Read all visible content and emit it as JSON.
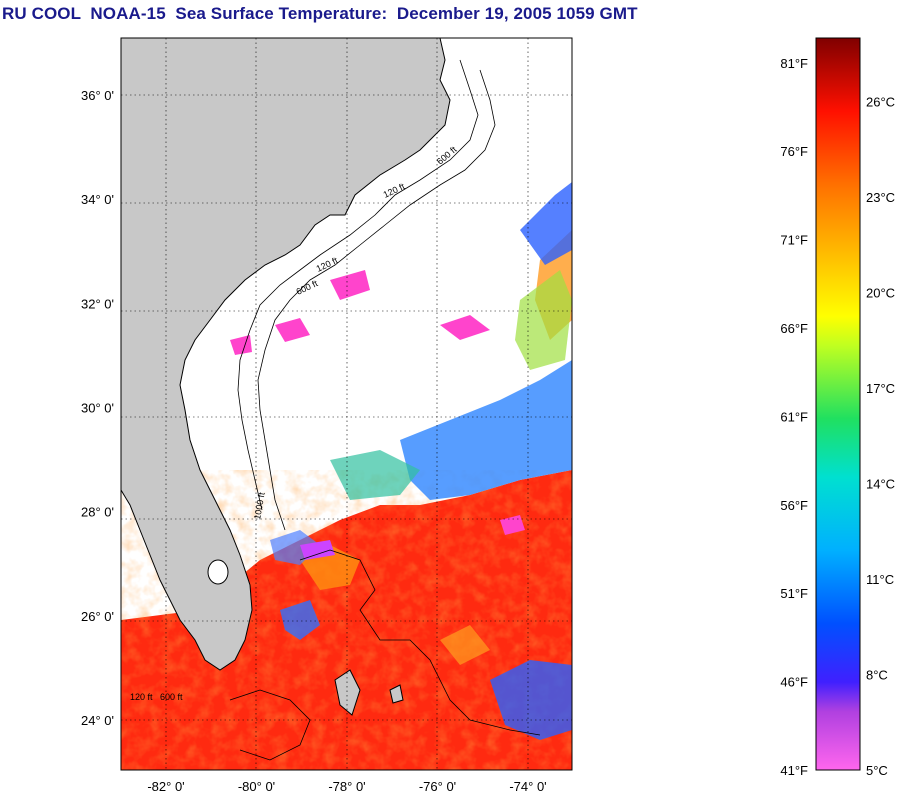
{
  "title": "RU COOL  NOAA-15  Sea Surface Temperature:  December 19, 2005 1059 GMT",
  "map": {
    "lat_ticks": [
      {
        "label": "36° 0'",
        "lat": 36
      },
      {
        "label": "34° 0'",
        "lat": 34
      },
      {
        "label": "32° 0'",
        "lat": 32
      },
      {
        "label": "30° 0'",
        "lat": 30
      },
      {
        "label": "28° 0'",
        "lat": 28
      },
      {
        "label": "26° 0'",
        "lat": 26
      },
      {
        "label": "24° 0'",
        "lat": 24
      }
    ],
    "lon_ticks": [
      {
        "label": "-82° 0'",
        "lon": -82
      },
      {
        "label": "-80° 0'",
        "lon": -80
      },
      {
        "label": "-78° 0'",
        "lon": -78
      },
      {
        "label": "-76° 0'",
        "lon": -76
      },
      {
        "label": "-74° 0'",
        "lon": -74
      }
    ],
    "depth_labels": [
      "120 ft",
      "600 ft",
      "120 ft",
      "600 ft",
      "1000 ft",
      "120 ft",
      "600 ft"
    ],
    "colors": {
      "land": "#c8c8c8",
      "cloud": "#ffffff",
      "warm": "#ff2a10",
      "orange": "#ff8c10",
      "cool": "#3a6cff",
      "cold": "#ff44cc"
    }
  },
  "colorbar": {
    "fahrenheit": [
      "81°F",
      "76°F",
      "71°F",
      "66°F",
      "61°F",
      "56°F",
      "51°F",
      "46°F",
      "41°F"
    ],
    "celsius": [
      "26°C",
      "23°C",
      "20°C",
      "17°C",
      "14°C",
      "11°C",
      "8°C",
      "5°C"
    ],
    "range_c": [
      5,
      28
    ]
  }
}
